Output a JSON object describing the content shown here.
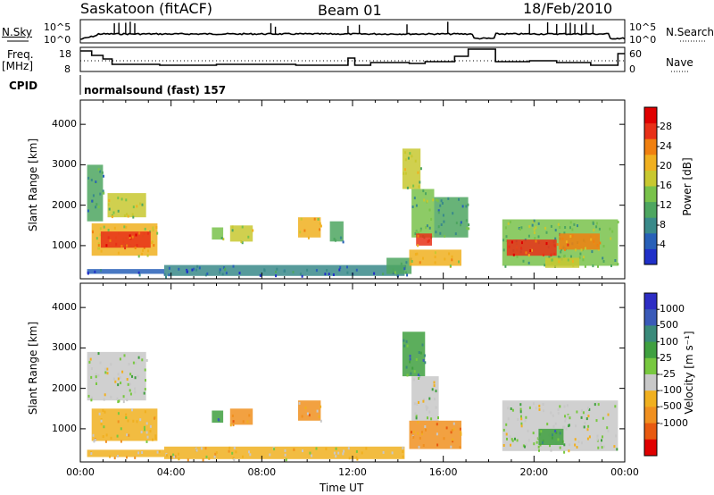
{
  "header": {
    "station": "Saskatoon (fitACF)",
    "beam": "Beam 01",
    "date": "18/Feb/2010"
  },
  "labels": {
    "nsky": "N.Sky",
    "nsearch": "N.Search",
    "freq_line1": "Freq.",
    "freq_line2": "[MHz]",
    "nave": "Nave",
    "cpid": "CPID",
    "cpid_value": "normalsound (fast) 157"
  },
  "ticks": {
    "noise_left": [
      "10^5",
      "10^0"
    ],
    "noise_right": [
      "10^5",
      "10^0"
    ],
    "freq_left": [
      "18",
      "8"
    ],
    "nave_right": [
      "60",
      "0"
    ]
  },
  "colors": {
    "power_scale": [
      "#2030c8",
      "#2860b8",
      "#3a8a8a",
      "#4ea660",
      "#79c24b",
      "#c8c830",
      "#f0b020",
      "#f08010",
      "#e83018",
      "#e00000"
    ],
    "velocity_scale": [
      "#2d2dc4",
      "#3a5ab8",
      "#3a8a7a",
      "#40a040",
      "#78c840",
      "#c8c8c8",
      "#f0b020",
      "#f09020",
      "#e85a10",
      "#e00000"
    ]
  },
  "chart_data": [
    {
      "type": "heatmap",
      "title": "Power",
      "xlabel": "Time UT",
      "ylabel": "Slant Range [km]",
      "colorbar_label": "Power [dB]",
      "x_ticks": [
        "00:00",
        "04:00",
        "08:00",
        "12:00",
        "16:00",
        "20:00",
        "00:00"
      ],
      "y_ticks": [
        1000,
        2000,
        3000,
        4000
      ],
      "xlim": [
        0,
        24
      ],
      "ylim": [
        180,
        4600
      ],
      "colorbar_ticks": [
        4,
        8,
        12,
        16,
        20,
        24,
        28
      ],
      "colorbar_range": [
        0,
        32
      ],
      "regions": [
        {
          "t0": 0.3,
          "t1": 3.7,
          "r0": 300,
          "r1": 420,
          "v": 6
        },
        {
          "t0": 3.7,
          "t1": 14.3,
          "r0": 250,
          "r1": 520,
          "v": 8
        },
        {
          "t0": 13.5,
          "t1": 14.6,
          "r0": 300,
          "r1": 700,
          "v": 10
        },
        {
          "t0": 0.5,
          "t1": 3.4,
          "r0": 750,
          "r1": 1550,
          "v": 22
        },
        {
          "t0": 0.9,
          "t1": 3.1,
          "r0": 950,
          "r1": 1350,
          "v": 28
        },
        {
          "t0": 0.3,
          "t1": 1.0,
          "r0": 1600,
          "r1": 3000,
          "v": 10
        },
        {
          "t0": 1.2,
          "t1": 2.9,
          "r0": 1700,
          "r1": 2300,
          "v": 18
        },
        {
          "t0": 5.8,
          "t1": 6.3,
          "r0": 1150,
          "r1": 1450,
          "v": 14
        },
        {
          "t0": 6.6,
          "t1": 7.6,
          "r0": 1100,
          "r1": 1500,
          "v": 16
        },
        {
          "t0": 9.6,
          "t1": 10.6,
          "r0": 1200,
          "r1": 1700,
          "v": 20
        },
        {
          "t0": 11.0,
          "t1": 11.6,
          "r0": 1100,
          "r1": 1600,
          "v": 10
        },
        {
          "t0": 14.2,
          "t1": 15.0,
          "r0": 2400,
          "r1": 3400,
          "v": 18
        },
        {
          "t0": 14.6,
          "t1": 15.6,
          "r0": 1200,
          "r1": 2400,
          "v": 14
        },
        {
          "t0": 14.8,
          "t1": 15.5,
          "r0": 1000,
          "r1": 1300,
          "v": 26
        },
        {
          "t0": 14.5,
          "t1": 16.8,
          "r0": 500,
          "r1": 900,
          "v": 22
        },
        {
          "t0": 15.6,
          "t1": 17.1,
          "r0": 1200,
          "r1": 2200,
          "v": 12
        },
        {
          "t0": 18.6,
          "t1": 23.7,
          "r0": 500,
          "r1": 1650,
          "v": 14
        },
        {
          "t0": 18.8,
          "t1": 21.0,
          "r0": 750,
          "r1": 1150,
          "v": 28
        },
        {
          "t0": 21.1,
          "t1": 22.9,
          "r0": 900,
          "r1": 1300,
          "v": 24
        },
        {
          "t0": 20.5,
          "t1": 22.0,
          "r0": 450,
          "r1": 700,
          "v": 18
        }
      ]
    },
    {
      "type": "heatmap",
      "title": "Velocity",
      "xlabel": "Time UT",
      "ylabel": "Slant Range [km]",
      "colorbar_label": "Velocity [m s⁻¹]",
      "x_ticks": [
        "00:00",
        "04:00",
        "08:00",
        "12:00",
        "16:00",
        "20:00",
        "00:00"
      ],
      "y_ticks": [
        1000,
        2000,
        3000,
        4000
      ],
      "xlim": [
        0,
        24
      ],
      "ylim": [
        180,
        4600
      ],
      "colorbar_ticks": [
        1000,
        500,
        100,
        25,
        -25,
        -100,
        -500,
        -1000
      ],
      "regions": [
        {
          "t0": 0.3,
          "t1": 3.7,
          "r0": 300,
          "r1": 480,
          "v": -80
        },
        {
          "t0": 3.7,
          "t1": 14.3,
          "r0": 250,
          "r1": 560,
          "v": -100
        },
        {
          "t0": 0.5,
          "t1": 3.4,
          "r0": 700,
          "r1": 1500,
          "v": -60
        },
        {
          "t0": 0.3,
          "t1": 2.9,
          "r0": 1700,
          "r1": 2900,
          "v": 0
        },
        {
          "t0": 5.8,
          "t1": 6.3,
          "r0": 1150,
          "r1": 1450,
          "v": 50
        },
        {
          "t0": 6.6,
          "t1": 7.6,
          "r0": 1100,
          "r1": 1500,
          "v": -200
        },
        {
          "t0": 9.6,
          "t1": 10.6,
          "r0": 1200,
          "r1": 1700,
          "v": -150
        },
        {
          "t0": 14.2,
          "t1": 15.2,
          "r0": 2300,
          "r1": 3400,
          "v": 50
        },
        {
          "t0": 14.6,
          "t1": 15.8,
          "r0": 1200,
          "r1": 2300,
          "v": 0
        },
        {
          "t0": 14.5,
          "t1": 16.8,
          "r0": 500,
          "r1": 1200,
          "v": -120
        },
        {
          "t0": 18.6,
          "t1": 23.7,
          "r0": 450,
          "r1": 1700,
          "v": 0
        },
        {
          "t0": 20.2,
          "t1": 21.3,
          "r0": 600,
          "r1": 1000,
          "v": 40
        }
      ]
    }
  ]
}
